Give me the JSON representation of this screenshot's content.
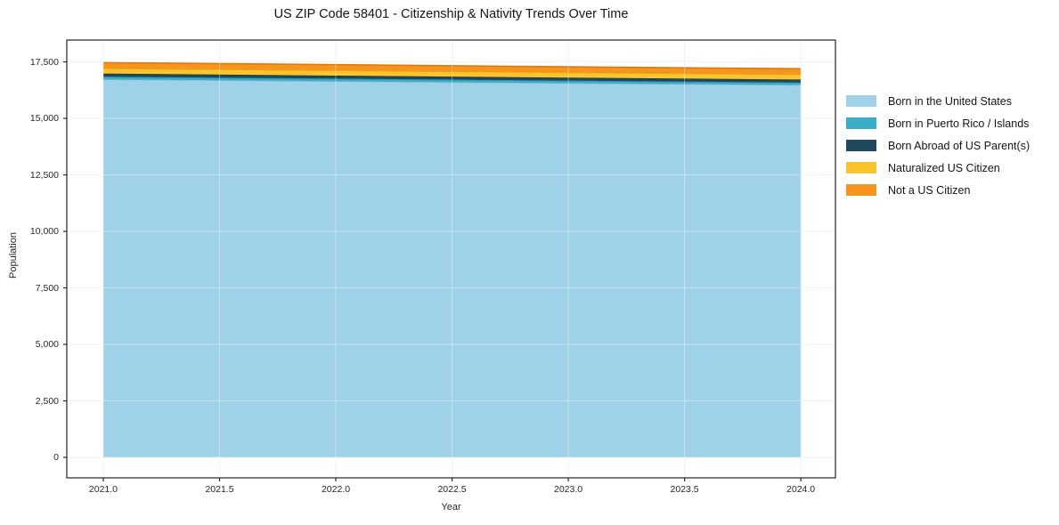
{
  "chart_data": {
    "type": "area",
    "stacked": true,
    "title": "US ZIP Code 58401 - Citizenship & Nativity Trends Over Time",
    "xlabel": "Year",
    "ylabel": "Population",
    "x": [
      2021,
      2022,
      2023,
      2024
    ],
    "series": [
      {
        "name": "Born in the United States",
        "color": "#9fd2e8",
        "edge_color": "#7fb8d4",
        "values": [
          16730,
          16645,
          16560,
          16480
        ]
      },
      {
        "name": "Born in Puerto Rico / Islands",
        "color": "#3aaec9",
        "edge_color": "#2e93ab",
        "values": [
          115,
          112,
          110,
          108
        ]
      },
      {
        "name": "Born Abroad of US Parent(s)",
        "color": "#1f4a5e",
        "edge_color": "#16394a",
        "values": [
          135,
          132,
          130,
          128
        ]
      },
      {
        "name": "Naturalized US Citizen",
        "color": "#fcc42c",
        "edge_color": "#e3a81a",
        "values": [
          235,
          232,
          230,
          228
        ]
      },
      {
        "name": "Not a US Citizen",
        "color": "#f7941e",
        "edge_color": "#d97c0d",
        "values": [
          255,
          252,
          250,
          248
        ]
      }
    ],
    "xticks": {
      "values": [
        2021.0,
        2021.5,
        2022.0,
        2022.5,
        2023.0,
        2023.5,
        2024.0
      ],
      "labels": [
        "2021.0",
        "2021.5",
        "2022.0",
        "2022.5",
        "2023.0",
        "2023.5",
        "2024.0"
      ]
    },
    "yticks": {
      "values": [
        0,
        2500,
        5000,
        7500,
        10000,
        12500,
        15000,
        17500
      ],
      "labels": [
        "0",
        "2,500",
        "5,000",
        "7,500",
        "10,000",
        "12,500",
        "15,000",
        "17,500"
      ]
    },
    "xlim": [
      2020.843,
      2024.149
    ],
    "ylim": [
      -905,
      18465
    ],
    "grid": true,
    "legend_position": "right",
    "colors": {
      "spine": "#262626",
      "grid": "#eaeaea",
      "grid_overlay": "rgba(255,255,255,0.38)",
      "tick_text": "#262626",
      "title_text": "#141414"
    }
  }
}
